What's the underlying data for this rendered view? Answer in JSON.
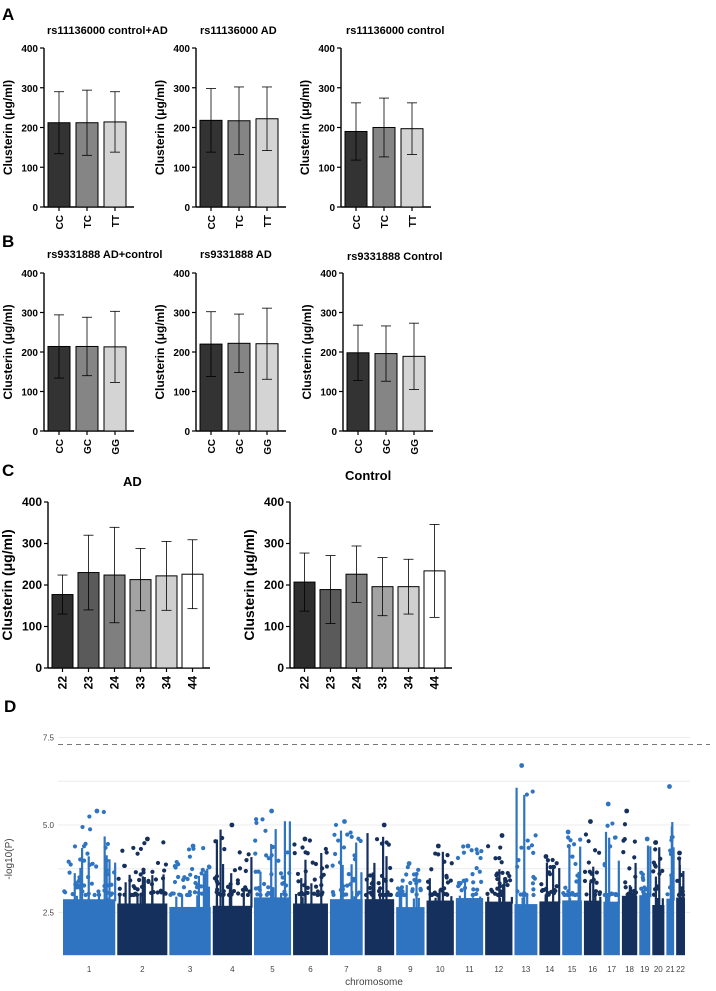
{
  "panel_labels": [
    "A",
    "B",
    "C",
    "D"
  ],
  "ylabel_clusterin": "Clusterin (μg/ml)",
  "chart_data": [
    {
      "type": "bar",
      "panel": "A",
      "title": "rs11136000 control+AD",
      "categories": [
        "CC",
        "TC",
        "TT"
      ],
      "values": [
        212,
        212,
        214
      ],
      "errors": [
        78,
        82,
        76
      ],
      "colors": [
        "#333333",
        "#858585",
        "#d4d4d4"
      ],
      "ylim": [
        0,
        400
      ],
      "yticks": [
        0,
        100,
        200,
        300,
        400
      ],
      "ylabel": "Clusterin (μg/ml)"
    },
    {
      "type": "bar",
      "panel": "A",
      "title": "rs11136000 AD",
      "categories": [
        "CC",
        "TC",
        "TT"
      ],
      "values": [
        218,
        217,
        222
      ],
      "errors": [
        80,
        85,
        80
      ],
      "colors": [
        "#333333",
        "#858585",
        "#d4d4d4"
      ],
      "ylim": [
        0,
        400
      ],
      "yticks": [
        0,
        100,
        200,
        300,
        400
      ],
      "ylabel": "Clusterin (μg/ml)"
    },
    {
      "type": "bar",
      "panel": "A",
      "title": "rs11136000 control",
      "categories": [
        "CC",
        "TC",
        "TT"
      ],
      "values": [
        190,
        200,
        197
      ],
      "errors": [
        72,
        74,
        65
      ],
      "colors": [
        "#333333",
        "#858585",
        "#d4d4d4"
      ],
      "ylim": [
        0,
        400
      ],
      "yticks": [
        0,
        100,
        200,
        300,
        400
      ],
      "ylabel": "Clusterin (μg/ml)"
    },
    {
      "type": "bar",
      "panel": "B",
      "title": "rs9331888 AD+control",
      "categories": [
        "CC",
        "GC",
        "GG"
      ],
      "values": [
        214,
        214,
        213
      ],
      "errors": [
        80,
        74,
        90
      ],
      "colors": [
        "#333333",
        "#858585",
        "#d4d4d4"
      ],
      "ylim": [
        0,
        400
      ],
      "yticks": [
        0,
        100,
        200,
        300,
        400
      ],
      "ylabel": "Clusterin (μg/ml)"
    },
    {
      "type": "bar",
      "panel": "B",
      "title": "rs9331888 AD",
      "categories": [
        "CC",
        "GC",
        "GG"
      ],
      "values": [
        220,
        222,
        221
      ],
      "errors": [
        82,
        74,
        90
      ],
      "colors": [
        "#333333",
        "#858585",
        "#d4d4d4"
      ],
      "ylim": [
        0,
        400
      ],
      "yticks": [
        0,
        100,
        200,
        300,
        400
      ],
      "ylabel": "Clusterin (μg/ml)"
    },
    {
      "type": "bar",
      "panel": "B",
      "title": "rs9331888 Control",
      "categories": [
        "CC",
        "GC",
        "GG"
      ],
      "values": [
        198,
        196,
        189
      ],
      "errors": [
        70,
        70,
        84
      ],
      "colors": [
        "#333333",
        "#858585",
        "#d4d4d4"
      ],
      "ylim": [
        0,
        400
      ],
      "yticks": [
        0,
        100,
        200,
        300,
        400
      ],
      "ylabel": "Clusterin (μg/ml)"
    },
    {
      "type": "bar",
      "panel": "C",
      "title": "AD",
      "categories": [
        "22",
        "23",
        "24",
        "33",
        "34",
        "44"
      ],
      "values": [
        177,
        230,
        224,
        213,
        222,
        226
      ],
      "errors": [
        47,
        90,
        115,
        75,
        83,
        83
      ],
      "colors": [
        "#2e2e2e",
        "#5a5a5a",
        "#7f7f7f",
        "#a3a3a3",
        "#cfcfcf",
        "#ffffff"
      ],
      "ylim": [
        0,
        400
      ],
      "yticks": [
        0,
        100,
        200,
        300,
        400
      ],
      "ylabel": "Clusterin (μg/ml)"
    },
    {
      "type": "bar",
      "panel": "C",
      "title": "Control",
      "categories": [
        "22",
        "23",
        "24",
        "33",
        "34",
        "44"
      ],
      "values": [
        207,
        189,
        226,
        196,
        196,
        234
      ],
      "errors": [
        70,
        82,
        68,
        70,
        66,
        112
      ],
      "colors": [
        "#2e2e2e",
        "#5a5a5a",
        "#7f7f7f",
        "#a3a3a3",
        "#cfcfcf",
        "#ffffff"
      ],
      "ylim": [
        0,
        400
      ],
      "yticks": [
        0,
        100,
        200,
        300,
        400
      ],
      "ylabel": "Clusterin (μg/ml)"
    },
    {
      "type": "scatter",
      "panel": "D",
      "subtype": "manhattan",
      "title": "",
      "xlabel": "chromosome",
      "ylabel": "-log10(P)",
      "yticks": [
        2.5,
        5.0,
        7.5
      ],
      "ylim": [
        1.2,
        8.0
      ],
      "significance_line": 7.3,
      "chromosomes": [
        "1",
        "2",
        "3",
        "4",
        "5",
        "6",
        "7",
        "8",
        "9",
        "10",
        "11",
        "12",
        "13",
        "14",
        "15",
        "16",
        "17",
        "18",
        "19",
        "20",
        "21",
        "22"
      ],
      "peaks": [
        5.4,
        4.6,
        4.4,
        5.0,
        5.4,
        4.6,
        5.1,
        5.0,
        3.9,
        4.4,
        4.4,
        4.7,
        6.7,
        4.1,
        4.8,
        5.1,
        5.6,
        5.4,
        4.6,
        4.5,
        6.1,
        4.2
      ],
      "colors": [
        "#2f74c0",
        "#15305c"
      ]
    }
  ]
}
